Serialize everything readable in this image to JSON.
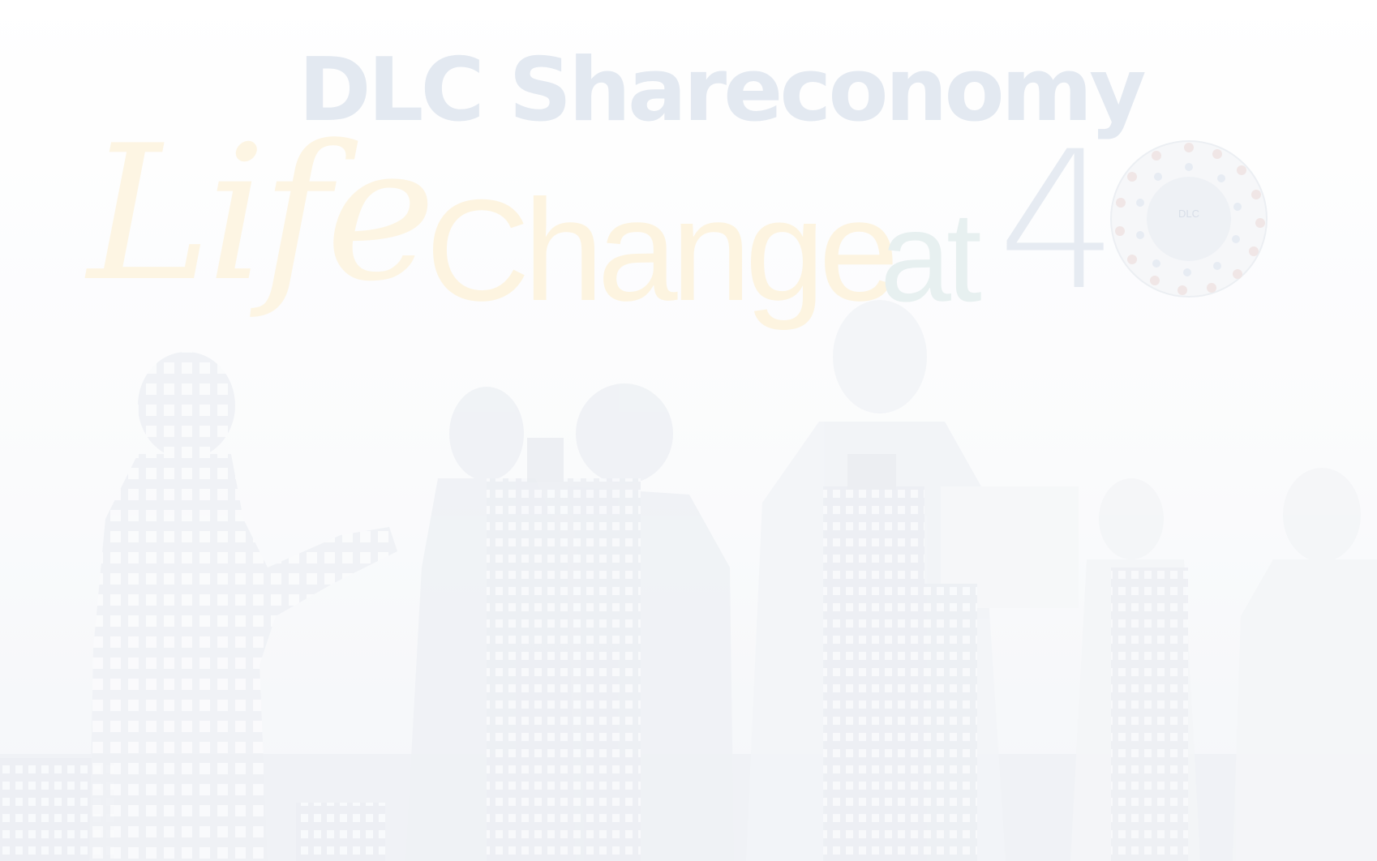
{
  "brand": {
    "name": "DLC Shareconomy"
  },
  "headline": {
    "word1": "Life",
    "word2": "Change",
    "word3": "at",
    "number": "4"
  },
  "emblem": {
    "label": "DLC"
  },
  "colors": {
    "brand_text": "#e3e9f1",
    "life_gold": "#fdf5e3",
    "at_teal": "#e7f0f0",
    "forty_blue": "#e6ebf2",
    "silhouette": "#e9edf2",
    "background": "#ffffff"
  },
  "background_image": {
    "icon": "business-people-city-silhouette"
  }
}
